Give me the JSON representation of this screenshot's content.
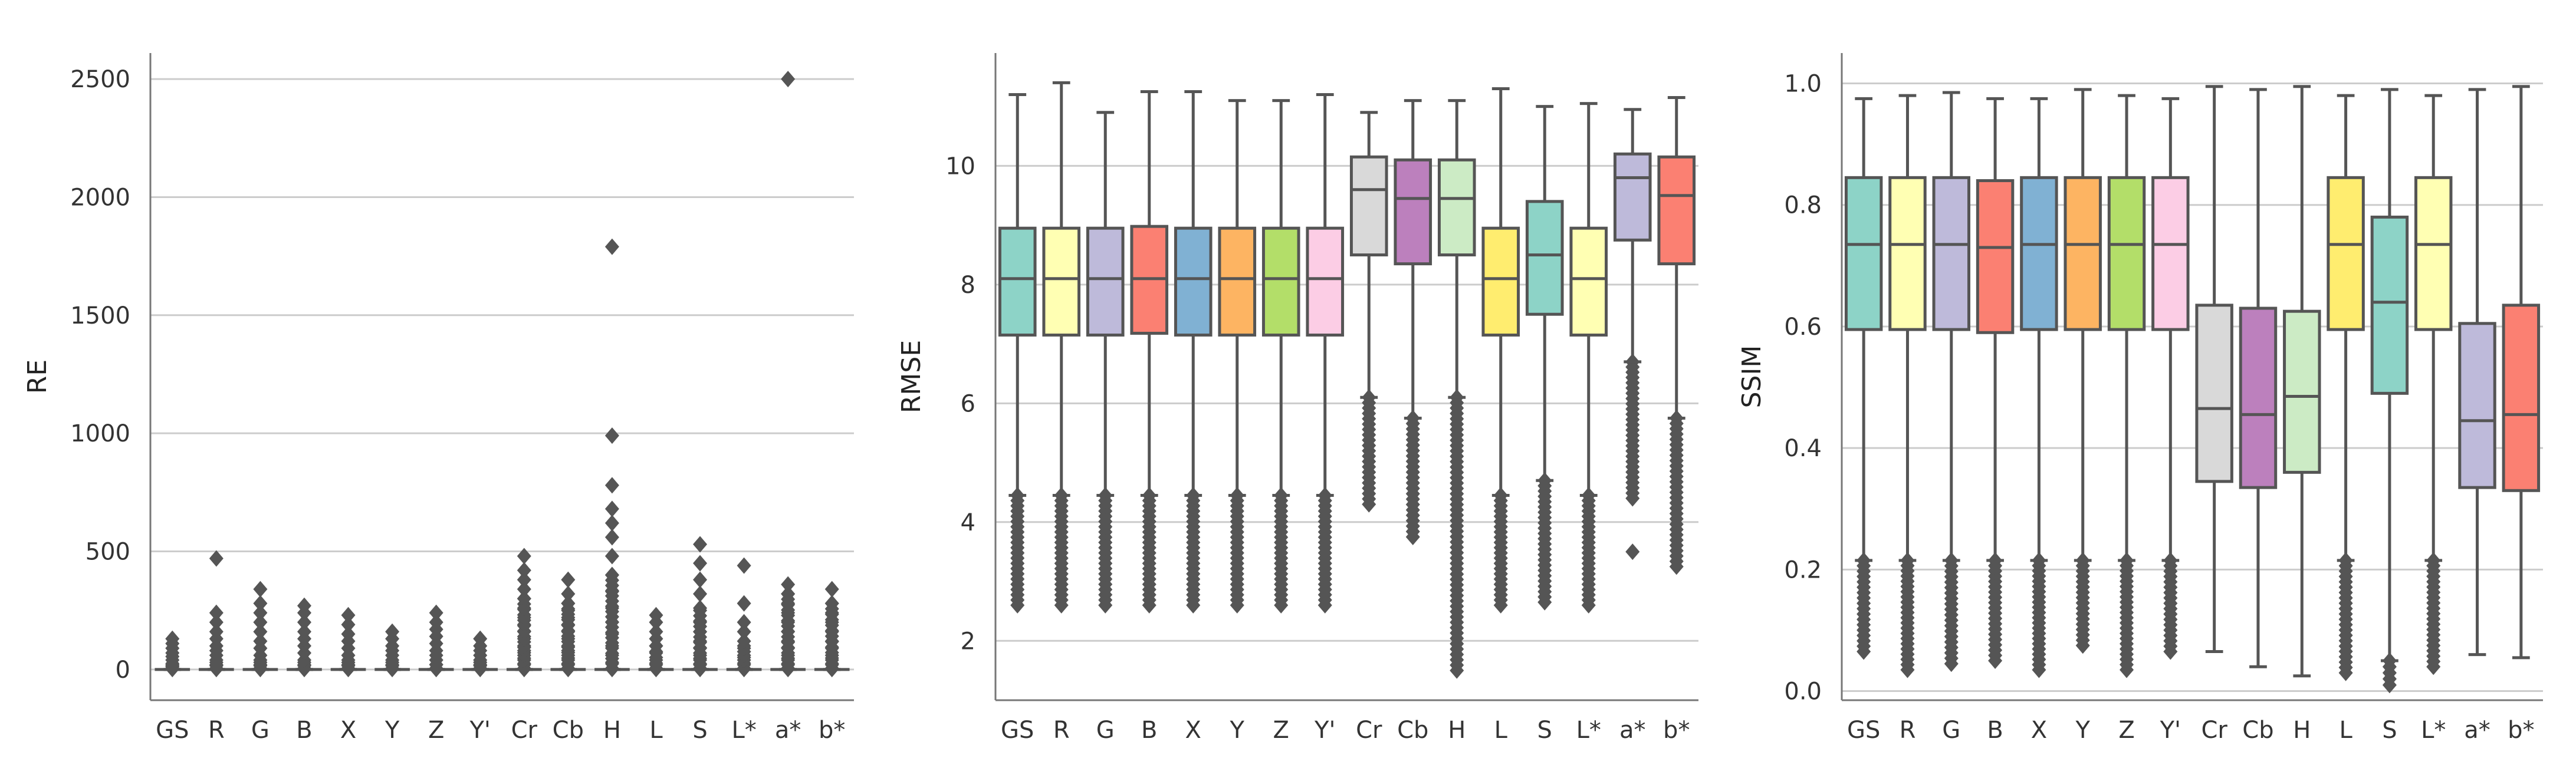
{
  "figure": {
    "background": "#ffffff",
    "grid_color": "#cccccc",
    "axis_color": "#777777",
    "line_color": "#555555"
  },
  "chart_data": [
    {
      "type": "box",
      "title": "",
      "xlabel": "",
      "ylabel": "RE",
      "ylim": [
        -130,
        2610
      ],
      "yticks": [
        0,
        500,
        1000,
        1500,
        2000,
        2500
      ],
      "categories": [
        "GS",
        "R",
        "G",
        "B",
        "X",
        "Y",
        "Z",
        "Y'",
        "Cr",
        "Cb",
        "H",
        "L",
        "S",
        "L*",
        "a*",
        "b*"
      ],
      "colors": [
        "#8dd3c7",
        "#ffffb3",
        "#bebada",
        "#fb8072",
        "#80b1d3",
        "#fdb462",
        "#b3de69",
        "#fccde5",
        "#d9d9d9",
        "#bc80bd",
        "#ccebc5",
        "#ffed6f",
        "#8dd3c7",
        "#ffffb3",
        "#bebada",
        "#fb8072"
      ],
      "boxes": [
        {
          "q1": 0,
          "median": 0,
          "q3": 0,
          "whisker_low": 0,
          "whisker_high": 0,
          "outliers": [
            5,
            15,
            25,
            40,
            55,
            70,
            90,
            110,
            130
          ],
          "dense_low": [
            2,
            20
          ]
        },
        {
          "q1": 0,
          "median": 0,
          "q3": 0,
          "whisker_low": 0,
          "whisker_high": 0,
          "outliers": [
            5,
            20,
            40,
            60,
            80,
            100,
            130,
            160,
            200,
            240,
            470
          ],
          "dense_low": [
            2,
            30
          ]
        },
        {
          "q1": 0,
          "median": 0,
          "q3": 0,
          "whisker_low": 0,
          "whisker_high": 0,
          "outliers": [
            5,
            20,
            40,
            60,
            90,
            120,
            160,
            200,
            240,
            280,
            340
          ],
          "dense_low": [
            2,
            30
          ]
        },
        {
          "q1": 0,
          "median": 0,
          "q3": 0,
          "whisker_low": 0,
          "whisker_high": 0,
          "outliers": [
            5,
            20,
            40,
            70,
            100,
            130,
            160,
            200,
            240,
            270
          ],
          "dense_low": [
            2,
            30
          ]
        },
        {
          "q1": 0,
          "median": 0,
          "q3": 0,
          "whisker_low": 0,
          "whisker_high": 0,
          "outliers": [
            5,
            20,
            40,
            60,
            90,
            120,
            150,
            190,
            230
          ],
          "dense_low": [
            2,
            30
          ]
        },
        {
          "q1": 0,
          "median": 0,
          "q3": 0,
          "whisker_low": 0,
          "whisker_high": 0,
          "outliers": [
            5,
            20,
            40,
            60,
            80,
            100,
            130,
            160
          ],
          "dense_low": [
            2,
            30
          ]
        },
        {
          "q1": 0,
          "median": 0,
          "q3": 0,
          "whisker_low": 0,
          "whisker_high": 0,
          "outliers": [
            5,
            20,
            40,
            60,
            80,
            110,
            140,
            170,
            200,
            240
          ],
          "dense_low": [
            2,
            40
          ]
        },
        {
          "q1": 0,
          "median": 0,
          "q3": 0,
          "whisker_low": 0,
          "whisker_high": 0,
          "outliers": [
            5,
            20,
            40,
            60,
            80,
            100,
            130
          ],
          "dense_low": [
            2,
            30
          ]
        },
        {
          "q1": 0,
          "median": 0,
          "q3": 0,
          "whisker_low": 0,
          "whisker_high": 0,
          "outliers": [
            5,
            20,
            40,
            60,
            80,
            100,
            130,
            160,
            190,
            220,
            260,
            300,
            340,
            380,
            420,
            480
          ],
          "dense_low": [
            2,
            300
          ]
        },
        {
          "q1": 0,
          "median": 0,
          "q3": 0,
          "whisker_low": 0,
          "whisker_high": 0,
          "outliers": [
            5,
            20,
            40,
            60,
            80,
            100,
            130,
            160,
            190,
            220,
            250,
            280,
            320,
            380
          ],
          "dense_low": [
            2,
            280
          ]
        },
        {
          "q1": 0,
          "median": 0,
          "q3": 0,
          "whisker_low": 0,
          "whisker_high": 0,
          "outliers": [
            5,
            30,
            60,
            100,
            150,
            200,
            260,
            330,
            400,
            480,
            560,
            620,
            680,
            780,
            990,
            1790
          ],
          "dense_low": [
            2,
            400
          ]
        },
        {
          "q1": 0,
          "median": 0,
          "q3": 0,
          "whisker_low": 0,
          "whisker_high": 0,
          "outliers": [
            5,
            20,
            40,
            70,
            100,
            130,
            160,
            200,
            230
          ],
          "dense_low": [
            2,
            100
          ]
        },
        {
          "q1": 0,
          "median": 0,
          "q3": 0,
          "whisker_low": 0,
          "whisker_high": 0,
          "outliers": [
            5,
            20,
            40,
            60,
            90,
            120,
            160,
            200,
            260,
            320,
            380,
            450,
            530
          ],
          "dense_low": [
            2,
            250
          ]
        },
        {
          "q1": 0,
          "median": 0,
          "q3": 0,
          "whisker_low": 0,
          "whisker_high": 0,
          "outliers": [
            5,
            20,
            40,
            60,
            90,
            120,
            160,
            200,
            280,
            440
          ],
          "dense_low": [
            2,
            100
          ]
        },
        {
          "q1": 0,
          "median": 0,
          "q3": 0,
          "whisker_low": 0,
          "whisker_high": 0,
          "outliers": [
            5,
            20,
            40,
            60,
            90,
            120,
            160,
            200,
            240,
            280,
            320,
            360,
            2500
          ],
          "dense_low": [
            2,
            320
          ]
        },
        {
          "q1": 0,
          "median": 0,
          "q3": 0,
          "whisker_low": 0,
          "whisker_high": 0,
          "outliers": [
            5,
            20,
            40,
            60,
            90,
            120,
            160,
            200,
            240,
            280,
            340
          ],
          "dense_low": [
            2,
            280
          ]
        }
      ]
    },
    {
      "type": "box",
      "title": "",
      "xlabel": "",
      "ylabel": "RMSE",
      "ylim": [
        1.0,
        11.9
      ],
      "yticks": [
        2,
        4,
        6,
        8,
        10
      ],
      "categories": [
        "GS",
        "R",
        "G",
        "B",
        "X",
        "Y",
        "Z",
        "Y'",
        "Cr",
        "Cb",
        "H",
        "L",
        "S",
        "L*",
        "a*",
        "b*"
      ],
      "colors": [
        "#8dd3c7",
        "#ffffb3",
        "#bebada",
        "#fb8072",
        "#80b1d3",
        "#fdb462",
        "#b3de69",
        "#fccde5",
        "#d9d9d9",
        "#bc80bd",
        "#ccebc5",
        "#ffed6f",
        "#8dd3c7",
        "#ffffb3",
        "#bebada",
        "#fb8072"
      ],
      "boxes": [
        {
          "q1": 7.15,
          "median": 8.1,
          "q3": 8.95,
          "whisker_low": 4.45,
          "whisker_high": 11.2,
          "outliers": [],
          "dense_low": [
            2.6,
            4.45
          ]
        },
        {
          "q1": 7.15,
          "median": 8.1,
          "q3": 8.95,
          "whisker_low": 4.45,
          "whisker_high": 11.4,
          "outliers": [],
          "dense_low": [
            2.6,
            4.45
          ]
        },
        {
          "q1": 7.15,
          "median": 8.1,
          "q3": 8.95,
          "whisker_low": 4.45,
          "whisker_high": 10.9,
          "outliers": [],
          "dense_low": [
            2.6,
            4.45
          ]
        },
        {
          "q1": 7.18,
          "median": 8.1,
          "q3": 8.98,
          "whisker_low": 4.45,
          "whisker_high": 11.25,
          "outliers": [],
          "dense_low": [
            2.6,
            4.45
          ]
        },
        {
          "q1": 7.15,
          "median": 8.1,
          "q3": 8.95,
          "whisker_low": 4.45,
          "whisker_high": 11.25,
          "outliers": [],
          "dense_low": [
            2.6,
            4.45
          ]
        },
        {
          "q1": 7.15,
          "median": 8.1,
          "q3": 8.95,
          "whisker_low": 4.45,
          "whisker_high": 11.1,
          "outliers": [],
          "dense_low": [
            2.6,
            4.45
          ]
        },
        {
          "q1": 7.15,
          "median": 8.1,
          "q3": 8.95,
          "whisker_low": 4.45,
          "whisker_high": 11.1,
          "outliers": [],
          "dense_low": [
            2.6,
            4.45
          ]
        },
        {
          "q1": 7.15,
          "median": 8.1,
          "q3": 8.95,
          "whisker_low": 4.45,
          "whisker_high": 11.2,
          "outliers": [],
          "dense_low": [
            2.6,
            4.45
          ]
        },
        {
          "q1": 8.5,
          "median": 9.6,
          "q3": 10.15,
          "whisker_low": 6.1,
          "whisker_high": 10.9,
          "outliers": [],
          "dense_low": [
            4.3,
            6.1
          ]
        },
        {
          "q1": 8.35,
          "median": 9.45,
          "q3": 10.1,
          "whisker_low": 5.75,
          "whisker_high": 11.1,
          "outliers": [],
          "dense_low": [
            3.75,
            5.75
          ]
        },
        {
          "q1": 8.5,
          "median": 9.45,
          "q3": 10.1,
          "whisker_low": 6.1,
          "whisker_high": 11.1,
          "outliers": [],
          "dense_low": [
            1.5,
            6.1
          ]
        },
        {
          "q1": 7.15,
          "median": 8.1,
          "q3": 8.95,
          "whisker_low": 4.45,
          "whisker_high": 11.3,
          "outliers": [],
          "dense_low": [
            2.6,
            4.45
          ]
        },
        {
          "q1": 7.5,
          "median": 8.5,
          "q3": 9.4,
          "whisker_low": 4.7,
          "whisker_high": 11.0,
          "outliers": [],
          "dense_low": [
            2.65,
            4.7
          ]
        },
        {
          "q1": 7.15,
          "median": 8.1,
          "q3": 8.95,
          "whisker_low": 4.45,
          "whisker_high": 11.05,
          "outliers": [],
          "dense_low": [
            2.6,
            4.45
          ]
        },
        {
          "q1": 8.75,
          "median": 9.8,
          "q3": 10.2,
          "whisker_low": 6.7,
          "whisker_high": 10.95,
          "outliers": [
            3.5
          ],
          "dense_low": [
            4.4,
            6.7
          ]
        },
        {
          "q1": 8.35,
          "median": 9.5,
          "q3": 10.15,
          "whisker_low": 5.75,
          "whisker_high": 11.15,
          "outliers": [],
          "dense_low": [
            3.25,
            5.75
          ]
        }
      ]
    },
    {
      "type": "box",
      "title": "",
      "xlabel": "",
      "ylabel": "SSIM",
      "ylim": [
        -0.015,
        1.05
      ],
      "yticks": [
        0.0,
        0.2,
        0.4,
        0.6,
        0.8,
        1.0
      ],
      "categories": [
        "GS",
        "R",
        "G",
        "B",
        "X",
        "Y",
        "Z",
        "Y'",
        "Cr",
        "Cb",
        "H",
        "L",
        "S",
        "L*",
        "a*",
        "b*"
      ],
      "colors": [
        "#8dd3c7",
        "#ffffb3",
        "#bebada",
        "#fb8072",
        "#80b1d3",
        "#fdb462",
        "#b3de69",
        "#fccde5",
        "#d9d9d9",
        "#bc80bd",
        "#ccebc5",
        "#ffed6f",
        "#8dd3c7",
        "#ffffb3",
        "#bebada",
        "#fb8072"
      ],
      "boxes": [
        {
          "q1": 0.595,
          "median": 0.735,
          "q3": 0.845,
          "whisker_low": 0.215,
          "whisker_high": 0.975,
          "outliers": [],
          "dense_low": [
            0.065,
            0.215
          ]
        },
        {
          "q1": 0.595,
          "median": 0.735,
          "q3": 0.845,
          "whisker_low": 0.215,
          "whisker_high": 0.98,
          "outliers": [],
          "dense_low": [
            0.035,
            0.215
          ]
        },
        {
          "q1": 0.595,
          "median": 0.735,
          "q3": 0.845,
          "whisker_low": 0.215,
          "whisker_high": 0.985,
          "outliers": [],
          "dense_low": [
            0.045,
            0.215
          ]
        },
        {
          "q1": 0.59,
          "median": 0.73,
          "q3": 0.84,
          "whisker_low": 0.215,
          "whisker_high": 0.975,
          "outliers": [],
          "dense_low": [
            0.05,
            0.215
          ]
        },
        {
          "q1": 0.595,
          "median": 0.735,
          "q3": 0.845,
          "whisker_low": 0.215,
          "whisker_high": 0.975,
          "outliers": [],
          "dense_low": [
            0.035,
            0.215
          ]
        },
        {
          "q1": 0.595,
          "median": 0.735,
          "q3": 0.845,
          "whisker_low": 0.215,
          "whisker_high": 0.99,
          "outliers": [],
          "dense_low": [
            0.075,
            0.215
          ]
        },
        {
          "q1": 0.595,
          "median": 0.735,
          "q3": 0.845,
          "whisker_low": 0.215,
          "whisker_high": 0.98,
          "outliers": [],
          "dense_low": [
            0.035,
            0.215
          ]
        },
        {
          "q1": 0.595,
          "median": 0.735,
          "q3": 0.845,
          "whisker_low": 0.215,
          "whisker_high": 0.975,
          "outliers": [],
          "dense_low": [
            0.065,
            0.215
          ]
        },
        {
          "q1": 0.345,
          "median": 0.465,
          "q3": 0.635,
          "whisker_low": 0.065,
          "whisker_high": 0.995,
          "outliers": [],
          "dense_low": null
        },
        {
          "q1": 0.335,
          "median": 0.455,
          "q3": 0.63,
          "whisker_low": 0.04,
          "whisker_high": 0.99,
          "outliers": [],
          "dense_low": null
        },
        {
          "q1": 0.36,
          "median": 0.485,
          "q3": 0.625,
          "whisker_low": 0.025,
          "whisker_high": 0.995,
          "outliers": [],
          "dense_low": null
        },
        {
          "q1": 0.595,
          "median": 0.735,
          "q3": 0.845,
          "whisker_low": 0.215,
          "whisker_high": 0.98,
          "outliers": [],
          "dense_low": [
            0.03,
            0.215
          ]
        },
        {
          "q1": 0.49,
          "median": 0.64,
          "q3": 0.78,
          "whisker_low": 0.05,
          "whisker_high": 0.99,
          "outliers": [
            0.01
          ],
          "dense_low": [
            0.02,
            0.05
          ]
        },
        {
          "q1": 0.595,
          "median": 0.735,
          "q3": 0.845,
          "whisker_low": 0.215,
          "whisker_high": 0.98,
          "outliers": [],
          "dense_low": [
            0.04,
            0.215
          ]
        },
        {
          "q1": 0.335,
          "median": 0.445,
          "q3": 0.605,
          "whisker_low": 0.06,
          "whisker_high": 0.99,
          "outliers": [],
          "dense_low": null
        },
        {
          "q1": 0.33,
          "median": 0.455,
          "q3": 0.635,
          "whisker_low": 0.055,
          "whisker_high": 0.995,
          "outliers": [],
          "dense_low": null
        }
      ]
    }
  ]
}
